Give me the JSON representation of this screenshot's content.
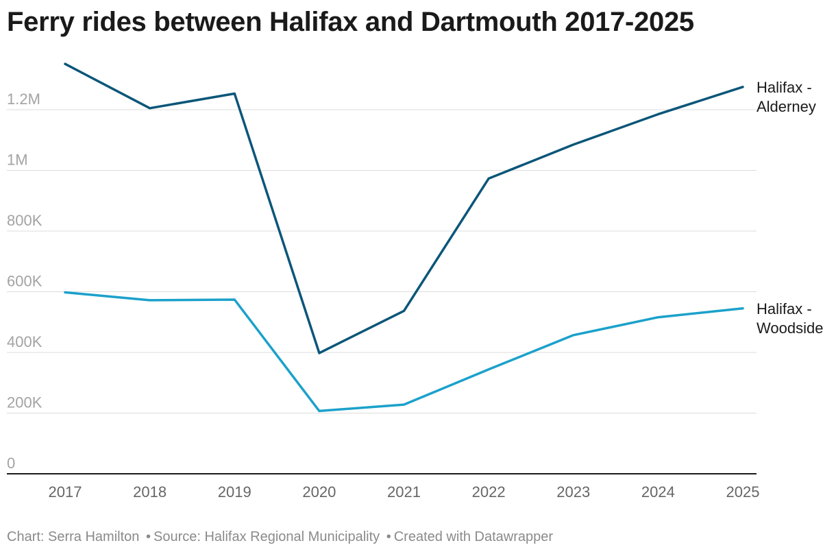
{
  "chart_data": {
    "type": "line",
    "title": "Ferry rides between Halifax and Dartmouth 2017-2025",
    "x": [
      "2017",
      "2018",
      "2019",
      "2020",
      "2021",
      "2022",
      "2023",
      "2024",
      "2025"
    ],
    "yticks": [
      0,
      200000,
      400000,
      600000,
      800000,
      1000000,
      1200000
    ],
    "ytick_labels": [
      "0",
      "200K",
      "400K",
      "600K",
      "800K",
      "1M",
      "1.2M"
    ],
    "ylim": [
      0,
      1350000
    ],
    "grid": true,
    "legend": "direct labels at line ends (right)",
    "series": [
      {
        "name": "Halifax - Alderney",
        "label_lines": [
          "Halifax -",
          "Alderney"
        ],
        "color": "#0b5679",
        "values": [
          1351000,
          1205000,
          1253000,
          398000,
          537000,
          973000,
          1085000,
          1185000,
          1275000
        ]
      },
      {
        "name": "Halifax - Woodside",
        "label_lines": [
          "Halifax -",
          "Woodside"
        ],
        "color": "#1ba1cb",
        "values": [
          598000,
          572000,
          574000,
          207000,
          228000,
          344000,
          457000,
          516000,
          545000
        ]
      }
    ]
  },
  "footer": {
    "chart_by": "Chart: Serra Hamilton",
    "source": "Source: Halifax Regional Municipality",
    "created": "Created with Datawrapper",
    "separator": "•"
  }
}
